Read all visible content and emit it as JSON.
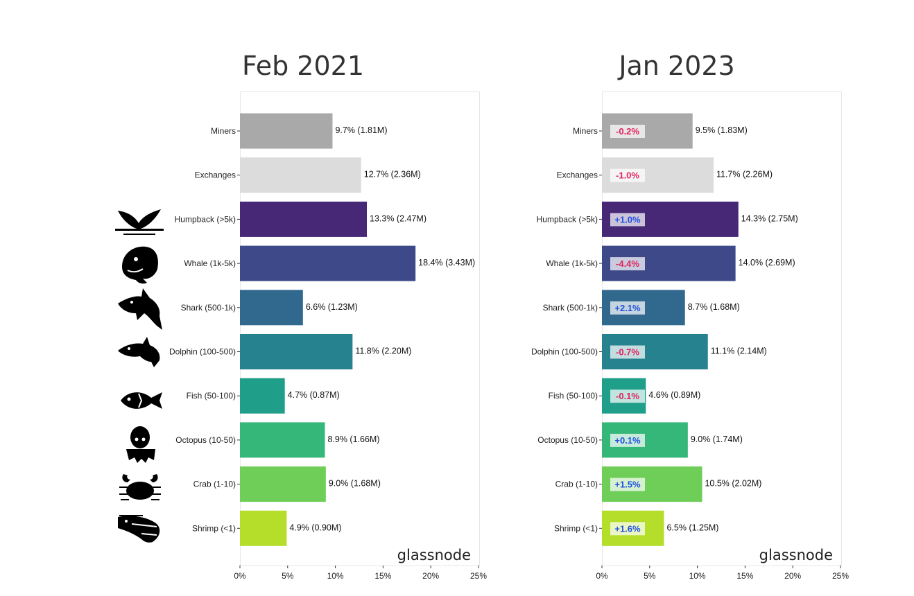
{
  "chart_data": [
    {
      "type": "bar",
      "orientation": "horizontal",
      "title": "Feb 2021",
      "categories": [
        "Miners",
        "Exchanges",
        "Humpback (>5k)",
        "Whale (1k-5k)",
        "Shark (500-1k)",
        "Dolphin (100-500)",
        "Fish (50-100)",
        "Octopus (10-50)",
        "Crab (1-10)",
        "Shrimp (<1)"
      ],
      "values": [
        9.7,
        12.7,
        13.3,
        18.4,
        6.6,
        11.8,
        4.7,
        8.9,
        9.0,
        4.9
      ],
      "labels": [
        "9.7% (1.81M)",
        "12.7% (2.36M)",
        "13.3% (2.47M)",
        "18.4% (3.43M)",
        "6.6% (1.23M)",
        "11.8% (2.20M)",
        "4.7% (0.87M)",
        "8.9% (1.66M)",
        "9.0% (1.68M)",
        "4.9% (0.90M)"
      ],
      "xlim": [
        0,
        25
      ],
      "x_ticks": [
        "0%",
        "5%",
        "10%",
        "15%",
        "20%",
        "25%"
      ],
      "watermark": "glassnode"
    },
    {
      "type": "bar",
      "orientation": "horizontal",
      "title": "Jan 2023",
      "categories": [
        "Miners",
        "Exchanges",
        "Humpback (>5k)",
        "Whale (1k-5k)",
        "Shark (500-1k)",
        "Dolphin (100-500)",
        "Fish (50-100)",
        "Octopus (10-50)",
        "Crab (1-10)",
        "Shrimp (<1)"
      ],
      "values": [
        9.5,
        11.7,
        14.3,
        14.0,
        8.7,
        11.1,
        4.6,
        9.0,
        10.5,
        6.5
      ],
      "labels": [
        "9.5% (1.83M)",
        "11.7% (2.26M)",
        "14.3% (2.75M)",
        "14.0% (2.69M)",
        "8.7% (1.68M)",
        "11.1% (2.14M)",
        "4.6% (0.89M)",
        "9.0% (1.74M)",
        "10.5% (2.02M)",
        "6.5% (1.25M)"
      ],
      "changes": [
        "-0.2%",
        "-1.0%",
        "+1.0%",
        "-4.4%",
        "+2.1%",
        "-0.7%",
        "-0.1%",
        "+0.1%",
        "+1.5%",
        "+1.6%"
      ],
      "xlim": [
        0,
        25
      ],
      "x_ticks": [
        "0%",
        "5%",
        "10%",
        "15%",
        "20%",
        "25%"
      ],
      "watermark": "glassnode"
    }
  ],
  "colors": {
    "bars": [
      "#a9a9a9",
      "#dcdcdc",
      "#472877",
      "#3e4989",
      "#31688e",
      "#26828e",
      "#1f9e89",
      "#35b779",
      "#6ece58",
      "#b5de2b"
    ],
    "negative_change": "#e0245e",
    "positive_change": "#1f4fe0"
  },
  "icons": [
    "humpback-tail-icon",
    "whale-icon",
    "shark-icon",
    "dolphin-icon",
    "fish-icon",
    "octopus-icon",
    "crab-icon",
    "shrimp-icon"
  ]
}
